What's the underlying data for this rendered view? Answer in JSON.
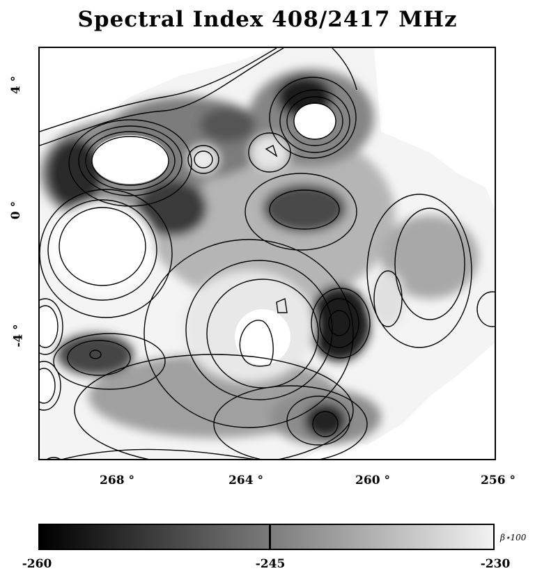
{
  "title": "Spectral Index 408/2417 MHz",
  "axes": {
    "x_ticks": [
      "268 °",
      "264 °",
      "260 °",
      "256 °"
    ],
    "y_ticks": [
      "4 °",
      "0 °",
      "-4 °"
    ]
  },
  "colorbar": {
    "unit_label": "β⋆100",
    "tick_labels": [
      "-260",
      "-245",
      "-230"
    ],
    "min": -260,
    "max": -230,
    "colormap": [
      "#000000",
      "#f2f2f2"
    ]
  }
}
